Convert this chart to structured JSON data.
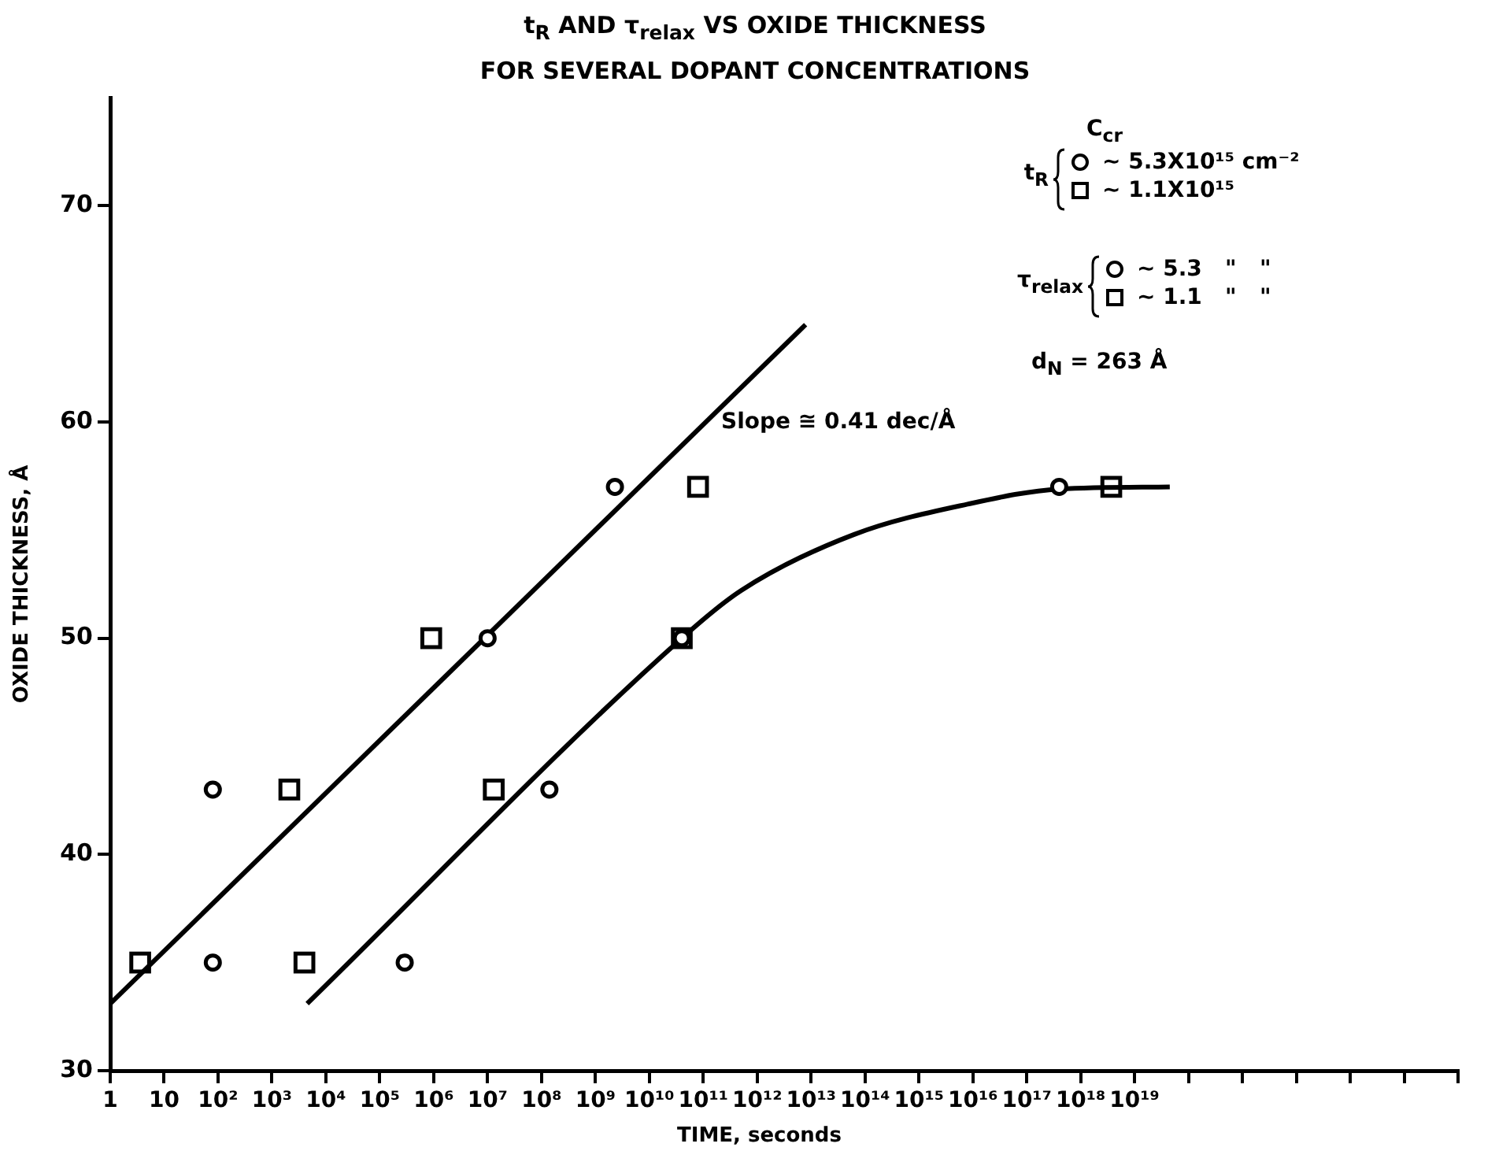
{
  "chart_data": {
    "type": "scatter",
    "title": "t$_{R}$ AND τ$_{relax}$ VS OXIDE THICKNESS\nFOR SEVERAL DOPANT CONCENTRATIONS",
    "xlabel": "TIME, seconds",
    "ylabel": "OXIDE THICKNESS, Å",
    "legend_title": "C$_{cr}$",
    "log": "x",
    "grid": false,
    "legend": "top right",
    "xlim": [
      1,
      1e+25
    ],
    "xticks": [
      {
        "value": 1,
        "label": "1"
      },
      {
        "value": 10,
        "label": "10"
      },
      {
        "value": 100.0,
        "label": "10²"
      },
      {
        "value": 1000.0,
        "label": "10³"
      },
      {
        "value": 10000.0,
        "label": "10⁴"
      },
      {
        "value": 100000.0,
        "label": "10⁵"
      },
      {
        "value": 1000000.0,
        "label": "10⁶"
      },
      {
        "value": 10000000.0,
        "label": "10⁷"
      },
      {
        "value": 100000000.0,
        "label": "10⁸"
      },
      {
        "value": 1000000000.0,
        "label": "10⁹"
      },
      {
        "value": 10000000000.0,
        "label": "10¹⁰"
      },
      {
        "value": 100000000000.0,
        "label": "10¹¹"
      },
      {
        "value": 1000000000000.0,
        "label": "10¹²"
      },
      {
        "value": 10000000000000.0,
        "label": "10¹³"
      },
      {
        "value": 100000000000000.0,
        "label": "10¹⁴"
      },
      {
        "value": 1000000000000000.0,
        "label": "10¹⁵"
      },
      {
        "value": 1e+16,
        "label": "10¹⁶"
      },
      {
        "value": 1e+17,
        "label": "10¹⁷"
      },
      {
        "value": 1e+18,
        "label": "10¹⁸"
      },
      {
        "value": 1e+19,
        "label": "10¹⁹"
      },
      {
        "value": 1e+20,
        "label": null
      },
      {
        "value": 1e+21,
        "label": null
      },
      {
        "value": 1e+22,
        "label": null
      },
      {
        "value": 1e+23,
        "label": null
      },
      {
        "value": 1e+24,
        "label": null
      },
      {
        "value": 1e+25,
        "label": null
      }
    ],
    "ylim": [
      30,
      75
    ],
    "yticks": [
      30,
      40,
      50,
      60,
      70
    ],
    "series": [
      {
        "name": "~ 5.3X10¹⁵ cm⁻²",
        "type": "scatter",
        "marker": "circle",
        "color": "#000000",
        "x": [
          290000.0,
          10000000.0,
          140000000.0,
          40000000000.0,
          4e+17
        ],
        "values": [
          35,
          50,
          43,
          50,
          57
        ]
      },
      {
        "name": "~ 1.1X10¹⁵",
        "type": "scatter",
        "marker": "square",
        "color": "#000000",
        "x": [
          3.6,
          4000.0,
          13000000.0,
          40000000000.0,
          3.7e+18
        ],
        "values": [
          35,
          35,
          43,
          50,
          57
        ]
      },
      {
        "name": "~ 5.3   \"   \"",
        "type": "scatter",
        "marker": "circle",
        "color": "#000000",
        "x": [
          80,
          80,
          2300000000.0
        ],
        "values": [
          35,
          43,
          57
        ]
      },
      {
        "name": "~ 1.1   \"   \"",
        "type": "scatter",
        "marker": "square",
        "color": "#000000",
        "x": [
          2100.0,
          900000.0,
          80000000000.0
        ],
        "values": [
          43,
          50,
          57
        ]
      },
      {
        "type": "line",
        "marker": "none",
        "color": "#000000",
        "x": [
          1,
          7900000000000.0
        ],
        "values": [
          33.1,
          64.5
        ]
      },
      {
        "type": "line",
        "marker": "none",
        "color": "#000000",
        "x": [
          4500.0,
          40000000000.0,
          500000000000.0,
          63000000000000.0,
          8000000000000000.0,
          4e+17,
          4.5e+19
        ],
        "values": [
          33.1,
          50,
          52.2,
          54.8,
          56.2,
          56.9,
          57
        ]
      }
    ],
    "annotations": [
      "t$_{R}$",
      "τ$_{relax}$",
      "Slope ≅ 0.41 dec/Å",
      "d$_{N}$ = 263 Å"
    ]
  }
}
